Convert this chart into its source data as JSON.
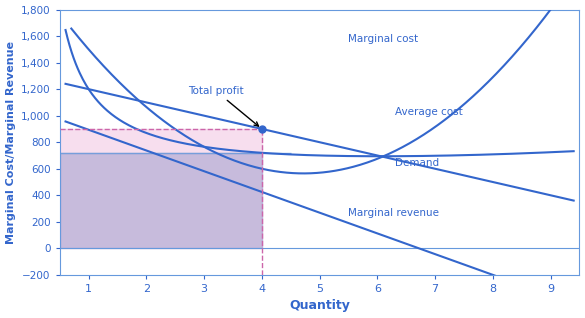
{
  "xlabel": "Quantity",
  "ylabel": "Marginal Cost/Marginal Revenue",
  "xlim": [
    0.5,
    9.5
  ],
  "ylim": [
    -200,
    1800
  ],
  "yticks": [
    -200,
    0,
    200,
    400,
    600,
    800,
    1000,
    1200,
    1400,
    1600,
    1800
  ],
  "xticks": [
    1,
    2,
    3,
    4,
    5,
    6,
    7,
    8,
    9
  ],
  "blue_color": "#3366cc",
  "light_blue": "#6699dd",
  "bg_color": "#ffffff",
  "price_level": 900,
  "q_star": 4,
  "pink_color": "#f4d0e8",
  "purple_color": "#9999bb"
}
